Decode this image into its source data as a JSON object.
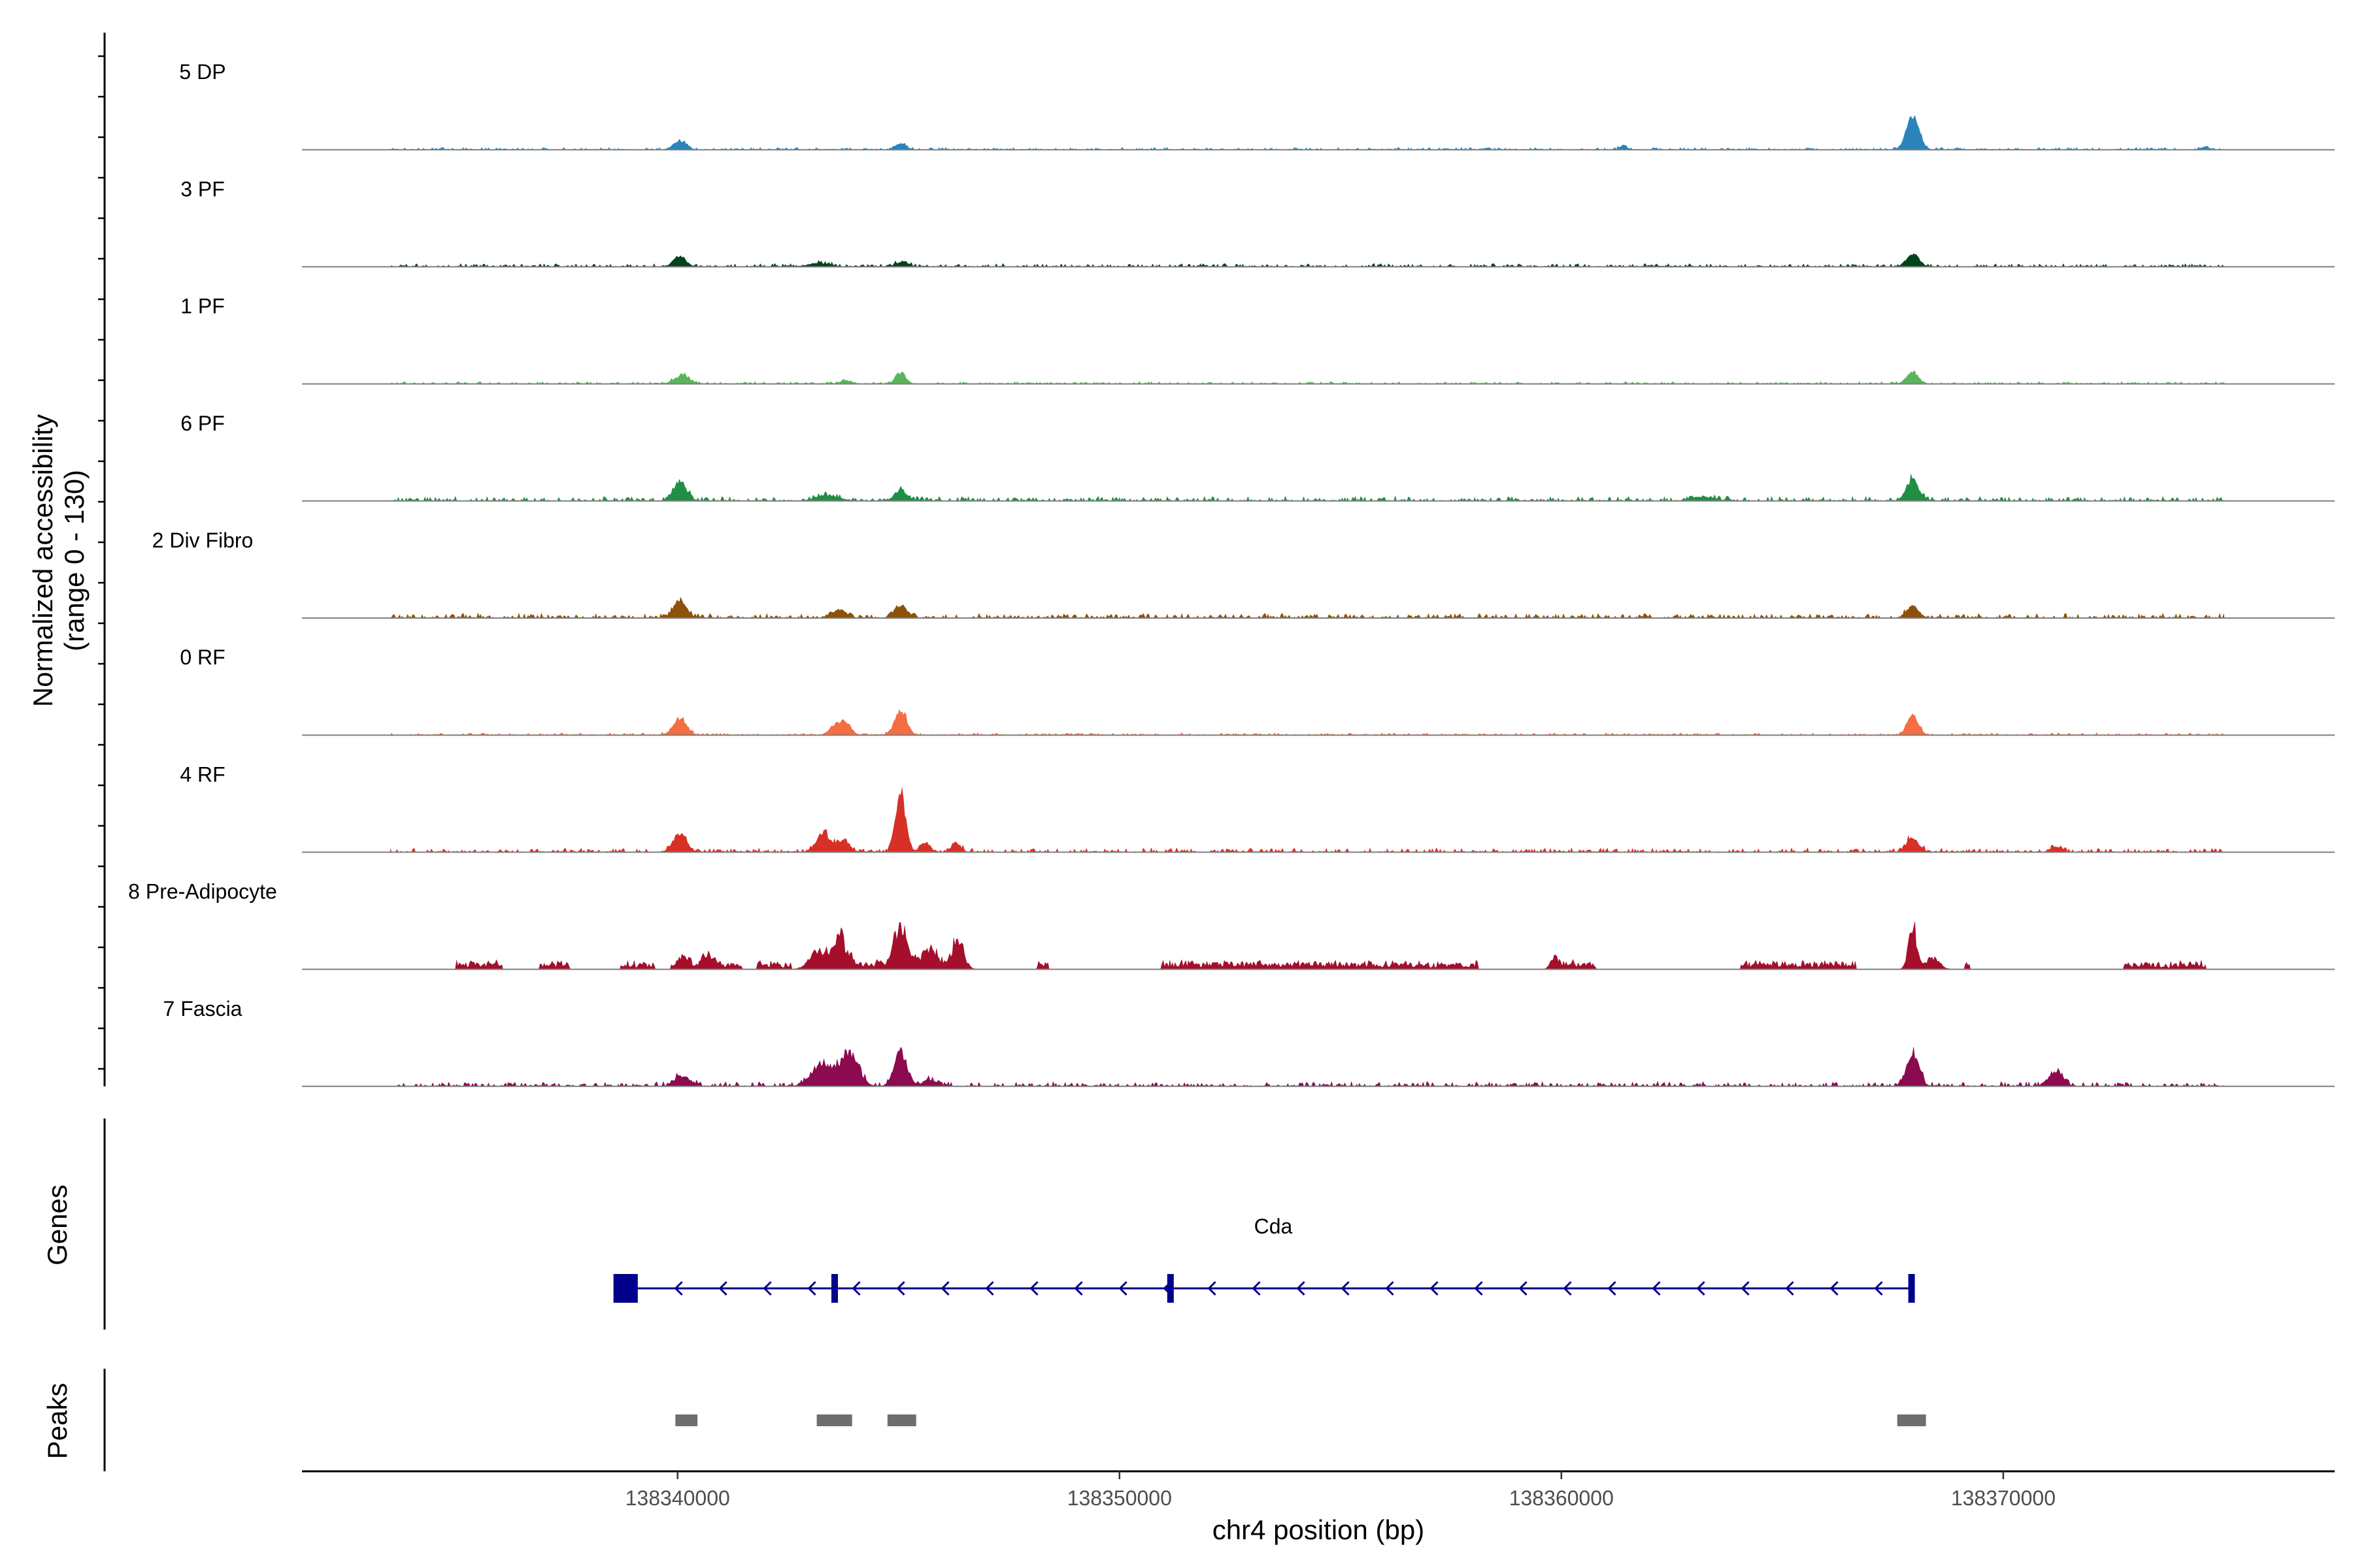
{
  "chart_data": {
    "type": "area",
    "ylabel_lines": [
      "Normalized accessibility",
      "(range 0 - 130)"
    ],
    "xlabel": "chr4 position (bp)",
    "xlim": [
      138331500,
      138377500
    ],
    "ylim": [
      0,
      130
    ],
    "x_ticks": [
      138340000,
      138350000,
      138360000,
      138370000
    ],
    "x_tick_labels": [
      "138340000",
      "138350000",
      "138360000",
      "138370000"
    ],
    "grid": false,
    "baseline_color": "#808080",
    "series": [
      {
        "name": "5 DP",
        "color": "#2b83ba",
        "peaks": [
          [
            138340050,
            14,
            140
          ],
          [
            138345050,
            9,
            120
          ],
          [
            138361400,
            6,
            80
          ],
          [
            138367950,
            52,
            140
          ],
          [
            138374550,
            4,
            90
          ]
        ],
        "noise": 2.5,
        "sparse": false
      },
      {
        "name": "3 PF",
        "color": "#00441b",
        "peaks": [
          [
            138340050,
            16,
            140
          ],
          [
            138343200,
            5,
            250
          ],
          [
            138345100,
            8,
            130
          ],
          [
            138367950,
            20,
            140
          ]
        ],
        "noise": 3.5,
        "sparse": false
      },
      {
        "name": "1 PF",
        "color": "#5bb45b",
        "peaks": [
          [
            138340100,
            14,
            160
          ],
          [
            138343800,
            5,
            120
          ],
          [
            138345050,
            18,
            110
          ],
          [
            138367950,
            18,
            130
          ]
        ],
        "noise": 2.5,
        "sparse": false
      },
      {
        "name": "6 PF",
        "color": "#1f8f44",
        "peaks": [
          [
            138340050,
            30,
            150
          ],
          [
            138343400,
            8,
            260
          ],
          [
            138345050,
            18,
            130
          ],
          [
            138363200,
            6,
            260
          ],
          [
            138367950,
            34,
            140
          ]
        ],
        "noise": 5,
        "sparse": false
      },
      {
        "name": "2 Div Fibro",
        "color": "#8c510a",
        "peaks": [
          [
            138340050,
            28,
            140
          ],
          [
            138343650,
            12,
            160
          ],
          [
            138345050,
            20,
            140
          ],
          [
            138367950,
            18,
            140
          ]
        ],
        "noise": 5,
        "sparse": false
      },
      {
        "name": "0 RF",
        "color": "#f46d43",
        "peaks": [
          [
            138340050,
            26,
            150
          ],
          [
            138343550,
            14,
            120
          ],
          [
            138343800,
            20,
            120
          ],
          [
            138345050,
            40,
            130
          ],
          [
            138367950,
            30,
            130
          ]
        ],
        "noise": 2.5,
        "sparse": false
      },
      {
        "name": "4 RF",
        "color": "#d73027",
        "peaks": [
          [
            138340050,
            28,
            150
          ],
          [
            138343300,
            30,
            150
          ],
          [
            138343750,
            20,
            130
          ],
          [
            138345050,
            95,
            110
          ],
          [
            138345600,
            14,
            110
          ],
          [
            138346300,
            16,
            100
          ],
          [
            138367950,
            22,
            140
          ],
          [
            138371200,
            8,
            120
          ]
        ],
        "noise": 4.5,
        "sparse": false
      },
      {
        "name": "8 Pre-Adipocyte",
        "color": "#a50f2c",
        "peaks": [
          [
            138340150,
            12,
            110
          ],
          [
            138340700,
            18,
            100
          ],
          [
            138343200,
            30,
            200
          ],
          [
            138343700,
            45,
            140
          ],
          [
            138345050,
            58,
            160
          ],
          [
            138345700,
            28,
            150
          ],
          [
            138346350,
            40,
            130
          ],
          [
            138359850,
            20,
            90
          ],
          [
            138367950,
            70,
            90
          ],
          [
            138368400,
            18,
            150
          ]
        ],
        "noise": 11,
        "sparse": true
      },
      {
        "name": "7 Fascia",
        "color": "#8b0a50",
        "peaks": [
          [
            138340100,
            16,
            170
          ],
          [
            138343300,
            34,
            250
          ],
          [
            138343900,
            50,
            200
          ],
          [
            138345050,
            54,
            140
          ],
          [
            138345700,
            10,
            150
          ],
          [
            138367950,
            52,
            140
          ],
          [
            138371200,
            22,
            150
          ]
        ],
        "noise": 5,
        "sparse": false
      }
    ],
    "genes_title": "Genes",
    "gene": {
      "name": "Cda",
      "strand": "-",
      "color": "#00008b",
      "start": 138338550,
      "end": 138367950,
      "exons": [
        [
          138338550,
          138339100
        ],
        [
          138343480,
          138343600
        ],
        [
          138351080,
          138351180
        ],
        [
          138367850,
          138367950
        ]
      ]
    },
    "peaks_title": "Peaks",
    "peak_color": "#6e6e6e",
    "peak_regions": [
      [
        138339950,
        138340450
      ],
      [
        138343150,
        138343950
      ],
      [
        138344750,
        138345400
      ],
      [
        138367600,
        138368250
      ]
    ]
  }
}
